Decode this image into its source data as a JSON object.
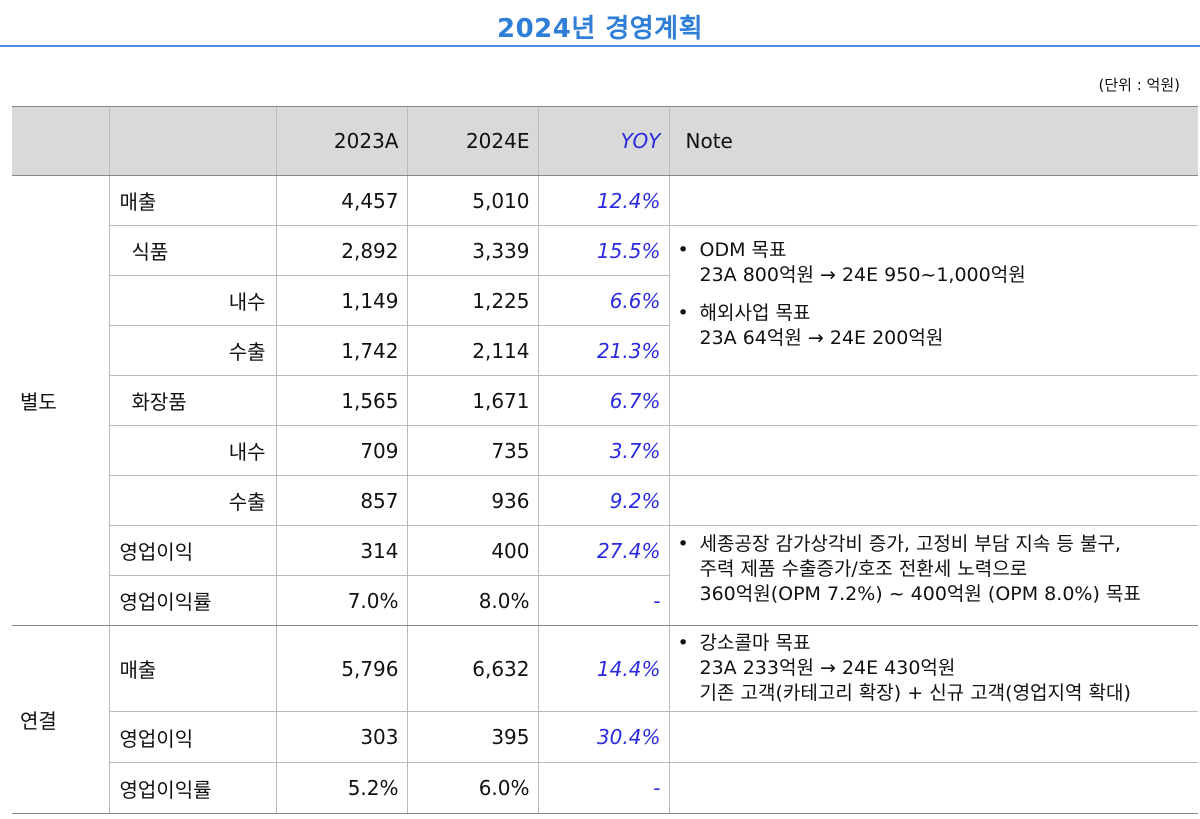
{
  "title": "2024년 경영계획",
  "unit": "(단위 : 억원)",
  "headers": {
    "c2023": "2023A",
    "c2024": "2024E",
    "yoy": "YOY",
    "note": "Note"
  },
  "groups": {
    "standalone": "별도",
    "consolidated": "연결"
  },
  "rows": [
    {
      "label": "매출",
      "v2023": "4,457",
      "v2024": "5,010",
      "yoy": "12.4%"
    },
    {
      "label": "식품",
      "v2023": "2,892",
      "v2024": "3,339",
      "yoy": "15.5%"
    },
    {
      "label": "내수",
      "v2023": "1,149",
      "v2024": "1,225",
      "yoy": "6.6%"
    },
    {
      "label": "수출",
      "v2023": "1,742",
      "v2024": "2,114",
      "yoy": "21.3%"
    },
    {
      "label": "화장품",
      "v2023": "1,565",
      "v2024": "1,671",
      "yoy": "6.7%"
    },
    {
      "label": "내수",
      "v2023": "709",
      "v2024": "735",
      "yoy": "3.7%"
    },
    {
      "label": "수출",
      "v2023": "857",
      "v2024": "936",
      "yoy": "9.2%"
    },
    {
      "label": "영업이익",
      "v2023": "314",
      "v2024": "400",
      "yoy": "27.4%"
    },
    {
      "label": "영업이익률",
      "v2023": "7.0%",
      "v2024": "8.0%",
      "yoy": "-"
    },
    {
      "label": "매출",
      "v2023": "5,796",
      "v2024": "6,632",
      "yoy": "14.4%"
    },
    {
      "label": "영업이익",
      "v2023": "303",
      "v2024": "395",
      "yoy": "30.4%"
    },
    {
      "label": "영업이익률",
      "v2023": "5.2%",
      "v2024": "6.0%",
      "yoy": "-"
    }
  ],
  "notes": {
    "bullet": "•",
    "food": [
      {
        "title": "ODM 목표",
        "line": "23A 800억원 → 24E 950~1,000억원"
      },
      {
        "title": "해외사업 목표",
        "line": "23A 64억원 → 24E 200억원"
      }
    ],
    "profit": {
      "l1": "세종공장 감가상각비 증가, 고정비 부담 지속 등 불구,",
      "l2": "주력 제품 수출증가/호조 전환세 노력으로",
      "l3": "360억원(OPM 7.2%) ~ 400억원 (OPM 8.0%) 목표"
    },
    "consolidated": {
      "l1": "강소콜마 목표",
      "l2": "23A 233억원 → 24E 430억원",
      "l3": "기존 고객(카테고리 확장) + 신규 고객(영업지역 확대)"
    }
  }
}
